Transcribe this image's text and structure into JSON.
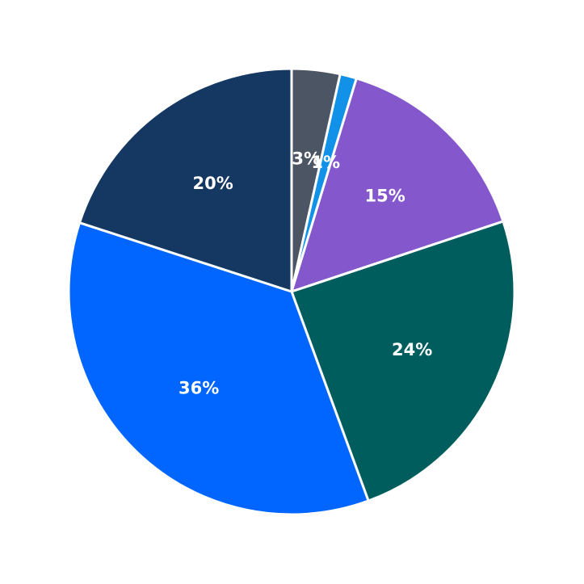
{
  "chart_data": {
    "type": "pie",
    "title": "",
    "start": "top",
    "direction": "clockwise",
    "legend": "none",
    "slices": [
      {
        "value": 3.5,
        "label": "3%",
        "color": "#4b5563"
      },
      {
        "value": 1.2,
        "label": "1%",
        "color": "#1192e8"
      },
      {
        "value": 15.2,
        "label": "15%",
        "color": "#8458cc"
      },
      {
        "value": 24.5,
        "label": "24%",
        "color": "#005d5d"
      },
      {
        "value": 35.6,
        "label": "36%",
        "color": "#0066ff"
      },
      {
        "value": 20.0,
        "label": "20%",
        "color": "#143861"
      }
    ]
  }
}
